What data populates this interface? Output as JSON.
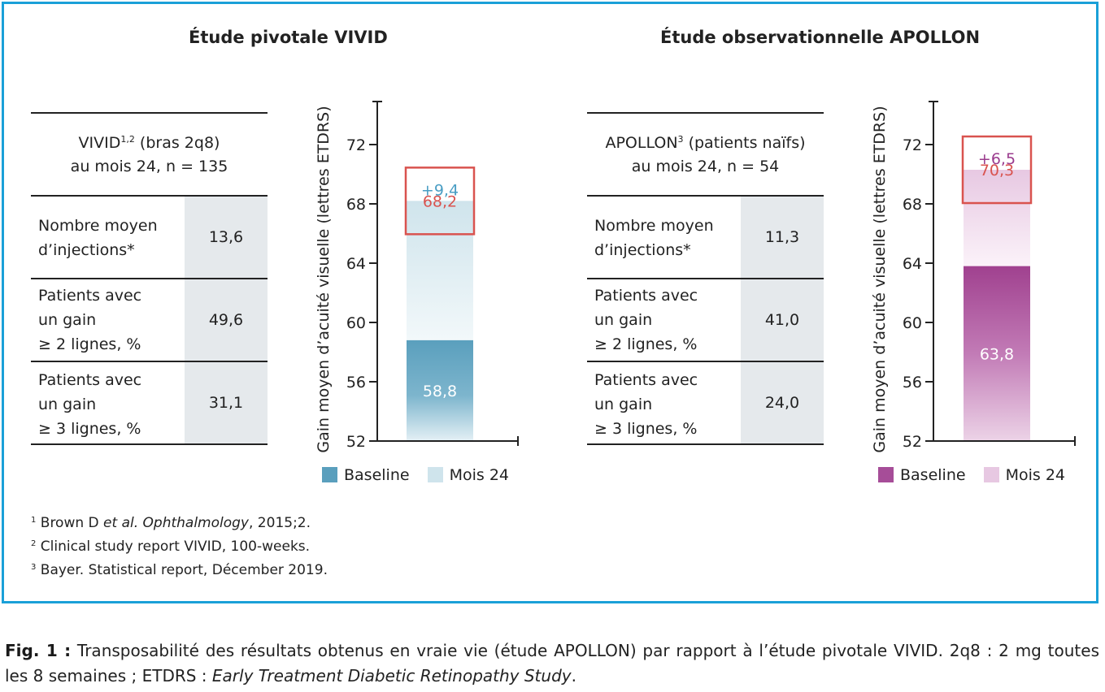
{
  "panels": [
    {
      "title": "Étude pivotale VIVID",
      "table": {
        "head_line1_prefix": "VIVID",
        "head_line1_sup": "1,2",
        "head_line1_suffix": " (bras 2q8)",
        "head_line2": "au mois 24, n = 135",
        "rows": [
          {
            "label": "Nombre moyen\nd’injections*",
            "value": "13,6"
          },
          {
            "label": "Patients avec\nun gain\n≥ 2 lignes, %",
            "value": "49,6"
          },
          {
            "label": "Patients avec\nun gain\n≥ 3 lignes, %",
            "value": "31,1"
          }
        ]
      },
      "legend": {
        "baseline": "Baseline",
        "month24": "Mois 24"
      },
      "colors": {
        "baseline": "#5a9fbd",
        "month24": "#cfe4ec",
        "gain_text": "#4a9ec4",
        "box": "#d9534f",
        "box_text": "#d9534f"
      }
    },
    {
      "title": "Étude observationnelle APOLLON",
      "table": {
        "head_line1_prefix": "APOLLON",
        "head_line1_sup": "3",
        "head_line1_suffix": " (patients naïfs)",
        "head_line2": "au mois 24, n = 54",
        "rows": [
          {
            "label": "Nombre moyen\nd’injections*",
            "value": "11,3"
          },
          {
            "label": "Patients avec\nun gain\n≥ 2 lignes, %",
            "value": "41,0"
          },
          {
            "label": "Patients avec\nun gain\n≥ 3 lignes, %",
            "value": "24,0"
          }
        ]
      },
      "legend": {
        "baseline": "Baseline",
        "month24": "Mois 24"
      },
      "colors": {
        "baseline": "#a64d98",
        "month24": "#e7c8e2",
        "gain_text": "#9b3c8e",
        "box": "#d9534f",
        "box_text": "#d9534f"
      }
    }
  ],
  "chart_data": [
    {
      "type": "bar",
      "categories": [
        "VIVID"
      ],
      "series": [
        {
          "name": "Baseline",
          "values": [
            58.8
          ]
        },
        {
          "name": "Mois 24",
          "values": [
            68.2
          ]
        }
      ],
      "baseline_label": "58,8",
      "month24_label": "68,2",
      "gain": 9.4,
      "gain_label": "+9,4",
      "ylabel": "Gain moyen d’acuité visuelle (lettres ETDRS)",
      "ylim": [
        52,
        74
      ],
      "yticks": [
        52,
        56,
        60,
        64,
        68,
        72
      ],
      "ytick_labels": [
        "52",
        "56",
        "60",
        "64",
        "68",
        "72"
      ]
    },
    {
      "type": "bar",
      "categories": [
        "APOLLON"
      ],
      "series": [
        {
          "name": "Baseline",
          "values": [
            63.8
          ]
        },
        {
          "name": "Mois 24",
          "values": [
            70.3
          ]
        }
      ],
      "baseline_label": "63,8",
      "month24_label": "70,3",
      "gain": 6.5,
      "gain_label": "+6,5",
      "ylabel": "Gain moyen d’acuité visuelle (lettres ETDRS)",
      "ylim": [
        52,
        74
      ],
      "yticks": [
        52,
        56,
        60,
        64,
        68,
        72
      ],
      "ytick_labels": [
        "52",
        "56",
        "60",
        "64",
        "68",
        "72"
      ]
    }
  ],
  "references": [
    {
      "num": "1",
      "pre": " Brown D ",
      "italic": "et al. Ophthalmology",
      "post": ", 2015;2."
    },
    {
      "num": "2",
      "pre": " Clinical study report VIVID, 100-weeks.",
      "italic": "",
      "post": ""
    },
    {
      "num": "3",
      "pre": " Bayer. Statistical report, Décember 2019.",
      "italic": "",
      "post": ""
    }
  ],
  "caption": {
    "label": "Fig. 1 :",
    "text": " Transposabilité des résultats obtenus en vraie vie (étude APOLLON) par rapport à l’étude pivotale VIVID. 2q8 : 2 mg toutes les 8 semaines ; ETDRS : ",
    "italic": "Early Treatment Diabetic Retinopathy Study",
    "end": "."
  }
}
